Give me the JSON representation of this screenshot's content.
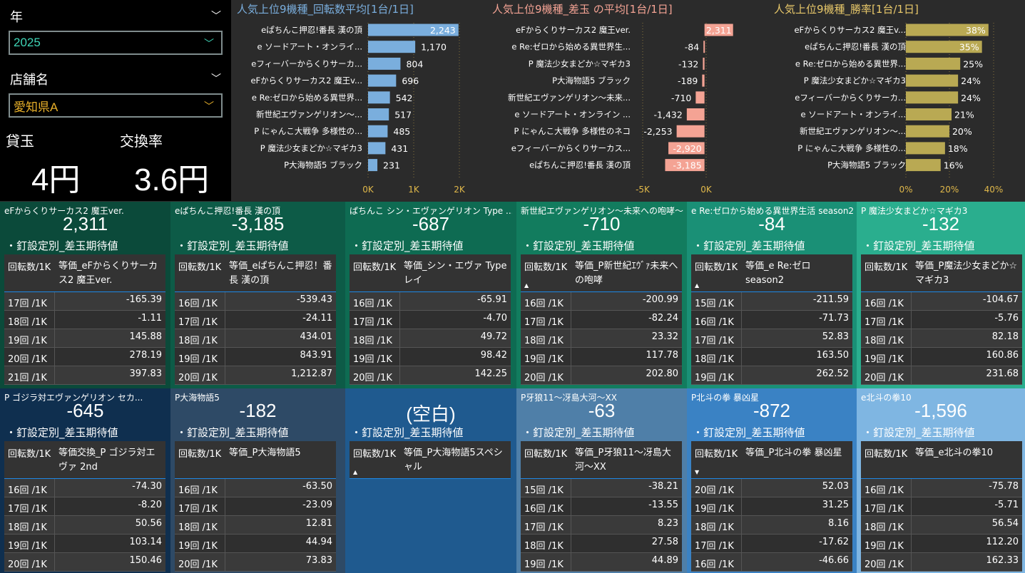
{
  "filters": {
    "year_label": "年",
    "year_value": "2025",
    "store_label": "店舗名",
    "store_value": "愛知県A"
  },
  "kpis": {
    "lend_label": "貸玉",
    "lend_value": "4円",
    "rate_label": "交換率",
    "rate_value": "3.6円"
  },
  "colors": {
    "spins": "#7aaedd",
    "diff_pos": "#f4a394",
    "diff_neg": "#f4a394",
    "winrate": "#b9a953",
    "title1": "#7aaedd",
    "title2": "#f4a394",
    "title3": "#e8c86a"
  },
  "chart_data": [
    {
      "type": "bar",
      "orientation": "horizontal",
      "title": "人気上位9機種_回転数平均[1台/1日]",
      "categories": [
        "eぱちんこ押忍!番長 漢の頂",
        "e ソードアート・オンライ...",
        "eフィーバーからくりサーカ...",
        "eFからくりサーカス2 魔王v...",
        "e Re:ゼロから始める異世界...",
        "新世紀エヴァンゲリオン～...",
        "P にゃんこ大戦争 多様性の...",
        "P 魔法少女まどか☆マギカ3",
        "P大海物語5 ブラック"
      ],
      "values": [
        2243,
        1170,
        804,
        696,
        542,
        517,
        485,
        431,
        231
      ],
      "labels": [
        "2,243",
        "1,170",
        "804",
        "696",
        "542",
        "517",
        "485",
        "431",
        "231"
      ],
      "xticks": [
        "0K",
        "1K",
        "2K"
      ],
      "xlim": [
        0,
        2300
      ]
    },
    {
      "type": "bar",
      "orientation": "horizontal",
      "title": "人気上位9機種_差玉 の平均[1台/1日]",
      "categories": [
        "eFからくりサーカス2 魔王ver.",
        "e Re:ゼロから始める異世界生...",
        "P 魔法少女まどか☆マギカ3",
        "P大海物語5 ブラック",
        "新世紀エヴァンゲリオン～未来...",
        "e ソードアート・オンライン ...",
        "P にゃんこ大戦争 多様性のネコ",
        "eフィーバーからくりサーカス...",
        "eぱちんこ押忍!番長 漢の頂"
      ],
      "values": [
        2311,
        -84,
        -132,
        -189,
        -710,
        -1432,
        -2253,
        -2920,
        -3185
      ],
      "labels": [
        "2,311",
        "-84",
        "-132",
        "-189",
        "-710",
        "-1,432",
        "-2,253",
        "-2,920",
        "-3,185"
      ],
      "xticks": [
        "-5K",
        "0K"
      ],
      "xlim": [
        -5000,
        2500
      ]
    },
    {
      "type": "bar",
      "orientation": "horizontal",
      "title": "人気上位9機種_勝率[1台/1日]",
      "categories": [
        "eFからくりサーカス2 魔王v...",
        "eぱちんこ押忍!番長 漢の頂",
        "e Re:ゼロから始める異世界...",
        "P 魔法少女まどか☆マギカ3",
        "eフィーバーからくりサーカ...",
        "e ソードアート・オンライ...",
        "新世紀エヴァンゲリオン～...",
        "P にゃんこ大戦争 多様性の...",
        "P大海物語5 ブラック"
      ],
      "values": [
        38,
        35,
        25,
        24,
        24,
        21,
        20,
        18,
        16
      ],
      "labels": [
        "38%",
        "35%",
        "25%",
        "24%",
        "24%",
        "21%",
        "20%",
        "18%",
        "16%"
      ],
      "xticks": [
        "0%",
        "20%",
        "40%"
      ],
      "xlim": [
        0,
        42
      ]
    }
  ],
  "cards": [
    {
      "name": "eFからくりサーカス2 魔王ver.",
      "value": "2,311",
      "subtitle": "・釘設定別_差玉期待値",
      "col1": "回転数/1K",
      "col2": "等価_eFからくりサーカス2 魔王ver.",
      "arrow": "",
      "bg": "#0b4a3a",
      "rows": [
        [
          "17回 /1K",
          "-165.39"
        ],
        [
          "18回 /1K",
          "-1.11"
        ],
        [
          "19回 /1K",
          "145.88"
        ],
        [
          "20回 /1K",
          "278.19"
        ],
        [
          "21回 /1K",
          "397.83"
        ]
      ]
    },
    {
      "name": "eぱちんこ押忍!番長 漢の頂",
      "value": "-3,185",
      "subtitle": "・釘設定別_差玉期待値",
      "col1": "回転数/1K",
      "col2": "等価_eぱちんこ押忍！番長 漢の頂",
      "arrow": "",
      "bg": "#0d5b47",
      "rows": [
        [
          "16回 /1K",
          "-539.43"
        ],
        [
          "17回 /1K",
          "-24.11"
        ],
        [
          "18回 /1K",
          "434.01"
        ],
        [
          "19回 /1K",
          "843.91"
        ],
        [
          "20回 /1K",
          "1,212.87"
        ]
      ]
    },
    {
      "name": "ぱちんこ シン・エヴァンゲリオン Type ...",
      "value": "-687",
      "subtitle": "・釘設定別_差玉期待値",
      "col1": "回転数/1K",
      "col2": "等価_シン・エヴァ Type レイ",
      "arrow": "",
      "bg": "#0e6b52",
      "rows": [
        [
          "16回 /1K",
          "-65.91"
        ],
        [
          "17回 /1K",
          "-4.70"
        ],
        [
          "18回 /1K",
          "49.72"
        ],
        [
          "19回 /1K",
          "98.42"
        ],
        [
          "20回 /1K",
          "142.25"
        ]
      ]
    },
    {
      "name": "新世紀エヴァンゲリオン～未来への咆哮～",
      "value": "-710",
      "subtitle": "・釘設定別_差玉期待値",
      "col1": "回転数/1K",
      "col2": "等価_P新世紀ｴｳﾞｧ未来への咆哮",
      "arrow": "▲",
      "bg": "#127c5e",
      "rows": [
        [
          "16回 /1K",
          "-200.99"
        ],
        [
          "17回 /1K",
          "-82.24"
        ],
        [
          "18回 /1K",
          "23.32"
        ],
        [
          "19回 /1K",
          "117.78"
        ],
        [
          "20回 /1K",
          "202.80"
        ]
      ]
    },
    {
      "name": "e Re:ゼロから始める異世界生活 season2",
      "value": "-84",
      "subtitle": "・釘設定別_差玉期待値",
      "col1": "回転数/1K",
      "col2": "等価_e Re:ゼロ season2",
      "arrow": "▲",
      "bg": "#1a9076",
      "rows": [
        [
          "15回 /1K",
          "-211.59"
        ],
        [
          "16回 /1K",
          "-71.73"
        ],
        [
          "17回 /1K",
          "52.83"
        ],
        [
          "18回 /1K",
          "163.50"
        ],
        [
          "19回 /1K",
          "262.52"
        ]
      ]
    },
    {
      "name": "P 魔法少女まどか☆マギカ3",
      "value": "-132",
      "subtitle": "・釘設定別_差玉期待値",
      "col1": "回転数/1K",
      "col2": "等価_P魔法少女まどか☆マギカ3",
      "arrow": "",
      "bg": "#2aae8e",
      "rows": [
        [
          "16回 /1K",
          "-104.67"
        ],
        [
          "17回 /1K",
          "-5.76"
        ],
        [
          "18回 /1K",
          "82.18"
        ],
        [
          "19回 /1K",
          "160.86"
        ],
        [
          "20回 /1K",
          "231.68"
        ]
      ]
    },
    {
      "name": "P ゴジラ対エヴァンゲリオン セカ...",
      "value": "-645",
      "subtitle": "・釘設定別_差玉期待値",
      "col1": "回転数/1K",
      "col2": "等価交換_P ゴジラ対エヴァ 2nd",
      "arrow": "",
      "bg": "#0f2f4f",
      "rows": [
        [
          "16回 /1K",
          "-74.30"
        ],
        [
          "17回 /1K",
          "-8.20"
        ],
        [
          "18回 /1K",
          "50.56"
        ],
        [
          "19回 /1K",
          "103.14"
        ],
        [
          "20回 /1K",
          "150.46"
        ]
      ]
    },
    {
      "name": "P大海物語5",
      "value": "-182",
      "subtitle": "・釘設定別_差玉期待値",
      "col1": "回転数/1K",
      "col2": "等価_P大海物語5",
      "arrow": "",
      "bg": "#2e4a66",
      "rows": [
        [
          "16回 /1K",
          "-63.50"
        ],
        [
          "17回 /1K",
          "-23.09"
        ],
        [
          "18回 /1K",
          "12.81"
        ],
        [
          "19回 /1K",
          "44.94"
        ],
        [
          "20回 /1K",
          "73.83"
        ]
      ]
    },
    {
      "name": "",
      "value": "(空白)",
      "subtitle": "・釘設定別_差玉期待値",
      "col1": "回転数/1K",
      "col2": "等価_P大海物語5スペシャル",
      "arrow": "▲",
      "bg": "#1f5a8f",
      "rows": []
    },
    {
      "name": "P牙狼11～冴島大河～XX",
      "value": "-63",
      "subtitle": "・釘設定別_差玉期待値",
      "col1": "回転数/1K",
      "col2": "等価_P牙狼11～冴島大河～XX",
      "arrow": "",
      "bg": "#4f7fa8",
      "rows": [
        [
          "15回 /1K",
          "-38.21"
        ],
        [
          "16回 /1K",
          "-13.55"
        ],
        [
          "17回 /1K",
          "8.23"
        ],
        [
          "18回 /1K",
          "27.58"
        ],
        [
          "19回 /1K",
          "44.89"
        ]
      ]
    },
    {
      "name": "P北斗の拳 暴凶星",
      "value": "-872",
      "subtitle": "・釘設定別_差玉期待値",
      "col1": "回転数/1K",
      "col2": "等価_P北斗の拳 暴凶星",
      "arrow": "▼",
      "bg": "#3a82c4",
      "rows": [
        [
          "20回 /1K",
          "52.03"
        ],
        [
          "19回 /1K",
          "31.25"
        ],
        [
          "18回 /1K",
          "8.16"
        ],
        [
          "17回 /1K",
          "-17.62"
        ],
        [
          "16回 /1K",
          "-46.66"
        ]
      ]
    },
    {
      "name": "e北斗の拳10",
      "value": "-1,596",
      "subtitle": "・釘設定別_差玉期待値",
      "col1": "回転数/1K",
      "col2": "等価_e北斗の拳10",
      "arrow": "",
      "bg": "#7fb6e2",
      "rows": [
        [
          "16回 /1K",
          "-75.78"
        ],
        [
          "17回 /1K",
          "-5.71"
        ],
        [
          "18回 /1K",
          "56.54"
        ],
        [
          "19回 /1K",
          "112.20"
        ],
        [
          "20回 /1K",
          "162.33"
        ]
      ]
    }
  ]
}
